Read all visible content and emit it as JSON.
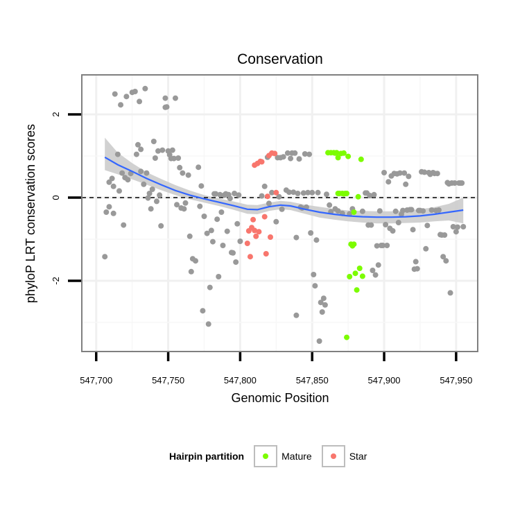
{
  "chart_data": {
    "type": "scatter",
    "title": "Conservation",
    "xlabel": "Genomic Position",
    "ylabel": "phyloP LRT conservation scores",
    "xlim": [
      547690,
      547965
    ],
    "ylim": [
      -3.7,
      2.95
    ],
    "x_ticks": [
      547700,
      547750,
      547800,
      547850,
      547900,
      547950
    ],
    "x_tick_labels": [
      "547,700",
      "547,750",
      "547,800",
      "547,850",
      "547,900",
      "547,950"
    ],
    "y_ticks": [
      -2,
      0,
      2
    ],
    "y_tick_labels": [
      "-2",
      "0",
      "2"
    ],
    "reference_line": {
      "y": 0,
      "style": "dashed"
    },
    "colors": {
      "other": "#999999",
      "Mature": "#7cfc00",
      "Star": "#f8766d",
      "smooth": "#3366ff",
      "band": "#cccccc"
    },
    "legend": {
      "title": "Hairpin partition",
      "entries": [
        "Mature",
        "Star"
      ]
    },
    "series": [
      {
        "name": "Other",
        "color": "#999999",
        "points": [
          [
            547706,
            -1.42
          ],
          [
            547707,
            -0.35
          ],
          [
            547709,
            0.37
          ],
          [
            547709,
            -0.22
          ],
          [
            547711,
            0.46
          ],
          [
            547712,
            0.27
          ],
          [
            547712,
            -0.38
          ],
          [
            547713,
            2.49
          ],
          [
            547715,
            1.04
          ],
          [
            547716,
            0.16
          ],
          [
            547717,
            2.23
          ],
          [
            547718,
            0.59
          ],
          [
            547719,
            -0.66
          ],
          [
            547720,
            0.48
          ],
          [
            547721,
            2.43
          ],
          [
            547722,
            0.43
          ],
          [
            547724,
            0.58
          ],
          [
            547725,
            2.53
          ],
          [
            547727,
            2.55
          ],
          [
            547728,
            1.04
          ],
          [
            547729,
            1.27
          ],
          [
            547730,
            2.31
          ],
          [
            547731,
            0.63
          ],
          [
            547731,
            1.16
          ],
          [
            547733,
            0.32
          ],
          [
            547734,
            2.62
          ],
          [
            547735,
            0.59
          ],
          [
            547736,
            -0.01
          ],
          [
            547737,
            0.1
          ],
          [
            547738,
            -0.27
          ],
          [
            547739,
            0.2
          ],
          [
            547740,
            1.35
          ],
          [
            547741,
            0.95
          ],
          [
            547742,
            -0.09
          ],
          [
            547743,
            1.12
          ],
          [
            547744,
            0.06
          ],
          [
            547745,
            -0.68
          ],
          [
            547746,
            1.14
          ],
          [
            547748,
            2.39
          ],
          [
            547748,
            2.17
          ],
          [
            547749,
            2.18
          ],
          [
            547750,
            1.12
          ],
          [
            547751,
            1.03
          ],
          [
            547752,
            0.94
          ],
          [
            547753,
            1.14
          ],
          [
            547754,
            0.94
          ],
          [
            547755,
            2.39
          ],
          [
            547756,
            -0.17
          ],
          [
            547757,
            0.95
          ],
          [
            547758,
            0.72
          ],
          [
            547759,
            -0.25
          ],
          [
            547760,
            0.59
          ],
          [
            547761,
            -0.27
          ],
          [
            547762,
            -0.13
          ],
          [
            547764,
            0.54
          ],
          [
            547765,
            -0.93
          ],
          [
            547766,
            -1.78
          ],
          [
            547767,
            -1.47
          ],
          [
            547769,
            -1.52
          ],
          [
            547771,
            0.73
          ],
          [
            547772,
            -0.21
          ],
          [
            547773,
            0.28
          ],
          [
            547774,
            -2.72
          ],
          [
            547775,
            -0.45
          ],
          [
            547777,
            -0.86
          ],
          [
            547778,
            -3.04
          ],
          [
            547779,
            -2.16
          ],
          [
            547780,
            -0.79
          ],
          [
            547781,
            -1.06
          ],
          [
            547782,
            0.09
          ],
          [
            547783,
            0.09
          ],
          [
            547784,
            -0.52
          ],
          [
            547785,
            -1.9
          ],
          [
            547786,
            0.07
          ],
          [
            547787,
            -0.35
          ],
          [
            547788,
            -1.15
          ],
          [
            547789,
            0.06
          ],
          [
            547790,
            0.09
          ],
          [
            547791,
            -0.81
          ],
          [
            547792,
            0.07
          ],
          [
            547793,
            -0.02
          ],
          [
            547794,
            -1.32
          ],
          [
            547795,
            -1.33
          ],
          [
            547796,
            0.1
          ],
          [
            547797,
            -1.55
          ],
          [
            547798,
            -0.63
          ],
          [
            547799,
            0.06
          ],
          [
            547800,
            -1.05
          ],
          [
            547815,
            0.04
          ],
          [
            547817,
            0.27
          ],
          [
            547819,
            0.97
          ],
          [
            547820,
            -0.14
          ],
          [
            547822,
            0.12
          ],
          [
            547825,
            -0.58
          ],
          [
            547826,
            0.96
          ],
          [
            547827,
            0.02
          ],
          [
            547828,
            0.96
          ],
          [
            547829,
            -0.28
          ],
          [
            547830,
            0.98
          ],
          [
            547832,
            0.18
          ],
          [
            547833,
            1.07
          ],
          [
            547834,
            0.13
          ],
          [
            547835,
            0.94
          ],
          [
            547836,
            1.07
          ],
          [
            547837,
            0.13
          ],
          [
            547838,
            1.07
          ],
          [
            547839,
            -0.96
          ],
          [
            547839,
            -2.83
          ],
          [
            547840,
            0.1
          ],
          [
            547841,
            0.93
          ],
          [
            547842,
            -0.23
          ],
          [
            547843,
            -0.25
          ],
          [
            547844,
            0.11
          ],
          [
            547845,
            1.05
          ],
          [
            547846,
            -0.23
          ],
          [
            547847,
            0.12
          ],
          [
            547848,
            1.04
          ],
          [
            547849,
            -0.85
          ],
          [
            547850,
            0.12
          ],
          [
            547851,
            -1.85
          ],
          [
            547852,
            -2.12
          ],
          [
            547853,
            -1.02
          ],
          [
            547854,
            0.12
          ],
          [
            547855,
            -3.45
          ],
          [
            547856,
            -2.52
          ],
          [
            547857,
            -2.75
          ],
          [
            547858,
            -2.42
          ],
          [
            547859,
            -2.58
          ],
          [
            547860,
            0.08
          ],
          [
            547862,
            -0.18
          ],
          [
            547863,
            -0.34
          ],
          [
            547866,
            -0.27
          ],
          [
            547868,
            -0.32
          ],
          [
            547871,
            -0.38
          ],
          [
            547876,
            -0.39
          ],
          [
            547878,
            -0.27
          ],
          [
            547885,
            -0.33
          ],
          [
            547887,
            0.11
          ],
          [
            547888,
            0.11
          ],
          [
            547889,
            -0.66
          ],
          [
            547890,
            0.05
          ],
          [
            547891,
            -0.66
          ],
          [
            547892,
            -1.75
          ],
          [
            547893,
            0.07
          ],
          [
            547894,
            -1.86
          ],
          [
            547895,
            -1.16
          ],
          [
            547896,
            -1.62
          ],
          [
            547897,
            -0.32
          ],
          [
            547898,
            -1.15
          ],
          [
            547899,
            -1.15
          ],
          [
            547900,
            0.6
          ],
          [
            547901,
            -0.65
          ],
          [
            547902,
            -1.15
          ],
          [
            547903,
            0.38
          ],
          [
            547904,
            -0.74
          ],
          [
            547905,
            0.52
          ],
          [
            547906,
            -0.8
          ],
          [
            547907,
            0.58
          ],
          [
            547908,
            -0.33
          ],
          [
            547909,
            0.57
          ],
          [
            547910,
            -0.6
          ],
          [
            547911,
            0.59
          ],
          [
            547912,
            -0.4
          ],
          [
            547913,
            -0.31
          ],
          [
            547914,
            0.59
          ],
          [
            547915,
            0.32
          ],
          [
            547916,
            -0.3
          ],
          [
            547917,
            0.51
          ],
          [
            547918,
            -0.29
          ],
          [
            547919,
            -0.29
          ],
          [
            547920,
            -0.77
          ],
          [
            547921,
            -1.72
          ],
          [
            547922,
            -1.54
          ],
          [
            547923,
            -1.71
          ],
          [
            547924,
            -0.31
          ],
          [
            547925,
            -0.31
          ],
          [
            547926,
            0.62
          ],
          [
            547927,
            -0.32
          ],
          [
            547928,
            0.61
          ],
          [
            547929,
            -1.23
          ],
          [
            547930,
            -0.67
          ],
          [
            547931,
            0.6
          ],
          [
            547932,
            0.56
          ],
          [
            547933,
            -0.3
          ],
          [
            547934,
            0.6
          ],
          [
            547935,
            0.58
          ],
          [
            547936,
            -0.31
          ],
          [
            547937,
            0.58
          ],
          [
            547938,
            -0.3
          ],
          [
            547939,
            -0.89
          ],
          [
            547940,
            -0.9
          ],
          [
            547941,
            -1.42
          ],
          [
            547942,
            -0.9
          ],
          [
            547943,
            -1.52
          ],
          [
            547944,
            0.36
          ],
          [
            547945,
            0.33
          ],
          [
            547946,
            -2.29
          ],
          [
            547947,
            0.35
          ],
          [
            547948,
            -0.7
          ],
          [
            547949,
            0.35
          ],
          [
            547950,
            -0.82
          ],
          [
            547951,
            -0.71
          ],
          [
            547952,
            0.35
          ],
          [
            547953,
            0.35
          ],
          [
            547954,
            0.35
          ],
          [
            547955,
            -0.7
          ]
        ]
      },
      {
        "name": "Mature",
        "color": "#7cfc00",
        "points": [
          [
            547861,
            1.08
          ],
          [
            547863,
            1.08
          ],
          [
            547865,
            1.08
          ],
          [
            547866,
            1.07
          ],
          [
            547867,
            1.08
          ],
          [
            547868,
            0.1
          ],
          [
            547868,
            0.96
          ],
          [
            547869,
            0.1
          ],
          [
            547870,
            1.06
          ],
          [
            547871,
            0.1
          ],
          [
            547872,
            0.09
          ],
          [
            547872,
            1.07
          ],
          [
            547873,
            0.1
          ],
          [
            547874,
            0.1
          ],
          [
            547874,
            -3.36
          ],
          [
            547875,
            0.99
          ],
          [
            547876,
            -1.9
          ],
          [
            547877,
            -1.12
          ],
          [
            547878,
            -1.16
          ],
          [
            547879,
            -0.35
          ],
          [
            547879,
            -1.12
          ],
          [
            547880,
            -1.82
          ],
          [
            547881,
            -2.22
          ],
          [
            547882,
            0.02
          ],
          [
            547883,
            -1.7
          ],
          [
            547884,
            0.92
          ],
          [
            547885,
            -1.89
          ]
        ]
      },
      {
        "name": "Star",
        "color": "#f8766d",
        "points": [
          [
            547805,
            -1.1
          ],
          [
            547806,
            -0.8
          ],
          [
            547807,
            -1.42
          ],
          [
            547808,
            -0.72
          ],
          [
            547809,
            -0.53
          ],
          [
            547810,
            -0.79
          ],
          [
            547810,
            0.78
          ],
          [
            547811,
            -0.93
          ],
          [
            547812,
            0.82
          ],
          [
            547813,
            -0.82
          ],
          [
            547814,
            0.87
          ],
          [
            547815,
            0.86
          ],
          [
            547817,
            -0.46
          ],
          [
            547818,
            -1.35
          ],
          [
            547819,
            0.03
          ],
          [
            547820,
            1.01
          ],
          [
            547821,
            -0.95
          ],
          [
            547822,
            1.07
          ],
          [
            547824,
            1.06
          ],
          [
            547825,
            0.12
          ]
        ]
      }
    ],
    "smooth": {
      "name": "loess",
      "x": [
        547706,
        547715,
        547725,
        547735,
        547745,
        547755,
        547765,
        547775,
        547785,
        547795,
        547805,
        547812,
        547820,
        547828,
        547835,
        547845,
        547855,
        547865,
        547875,
        547885,
        547895,
        547905,
        547915,
        547925,
        547935,
        547945,
        547955
      ],
      "y": [
        0.97,
        0.79,
        0.63,
        0.46,
        0.31,
        0.17,
        0.06,
        -0.03,
        -0.11,
        -0.19,
        -0.28,
        -0.29,
        -0.22,
        -0.18,
        -0.2,
        -0.28,
        -0.35,
        -0.4,
        -0.44,
        -0.46,
        -0.47,
        -0.47,
        -0.46,
        -0.44,
        -0.4,
        -0.35,
        -0.3
      ],
      "lower": [
        0.66,
        0.56,
        0.44,
        0.31,
        0.18,
        0.06,
        -0.04,
        -0.12,
        -0.2,
        -0.29,
        -0.39,
        -0.4,
        -0.32,
        -0.28,
        -0.3,
        -0.39,
        -0.48,
        -0.53,
        -0.57,
        -0.6,
        -0.62,
        -0.62,
        -0.61,
        -0.6,
        -0.57,
        -0.55,
        -0.62
      ],
      "upper": [
        1.44,
        1.08,
        0.83,
        0.61,
        0.45,
        0.3,
        0.17,
        0.06,
        -0.02,
        -0.09,
        -0.17,
        -0.18,
        -0.12,
        -0.08,
        -0.1,
        -0.17,
        -0.22,
        -0.27,
        -0.31,
        -0.32,
        -0.33,
        -0.33,
        -0.31,
        -0.28,
        -0.23,
        -0.15,
        0.0
      ]
    }
  }
}
